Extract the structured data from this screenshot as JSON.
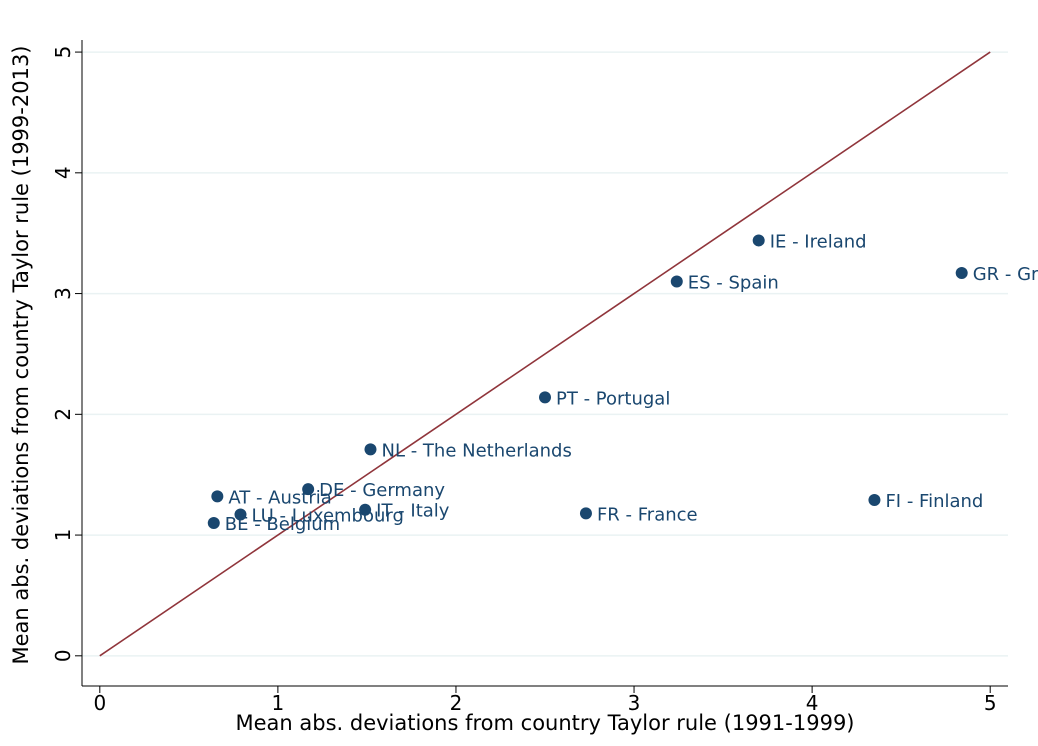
{
  "chart_data": {
    "type": "scatter",
    "xlabel": "Mean abs. deviations from country Taylor rule (1991-1999)",
    "ylabel": "Mean abs. deviations from country Taylor rule (1999-2013)",
    "labels": [
      "IE - Ireland",
      "GR - Greece",
      "ES - Spain",
      "PT - Portugal",
      "NL - The Netherlands",
      "DE - Germany",
      "AT - Austria",
      "LU - Luxembourg",
      "BE - Belgium",
      "IT - Italy",
      "FR - France",
      "FI - Finland"
    ],
    "x": [
      3.7,
      4.84,
      3.24,
      2.5,
      1.52,
      1.17,
      0.66,
      0.79,
      0.64,
      1.49,
      2.73,
      4.35
    ],
    "values": [
      3.44,
      3.17,
      3.1,
      2.14,
      1.71,
      1.38,
      1.32,
      1.17,
      1.1,
      1.21,
      1.18,
      1.29
    ],
    "color": "#1a476f",
    "reference_line": {
      "x": [
        0,
        5
      ],
      "y": [
        0,
        5
      ],
      "color": "#90353b"
    },
    "xlim": [
      -0.1,
      5.1
    ],
    "ylim": [
      -0.25,
      5.1
    ],
    "xticks": [
      0,
      1,
      2,
      3,
      4,
      5
    ],
    "yticks": [
      0,
      1,
      2,
      3,
      4,
      5
    ],
    "grid": true
  }
}
